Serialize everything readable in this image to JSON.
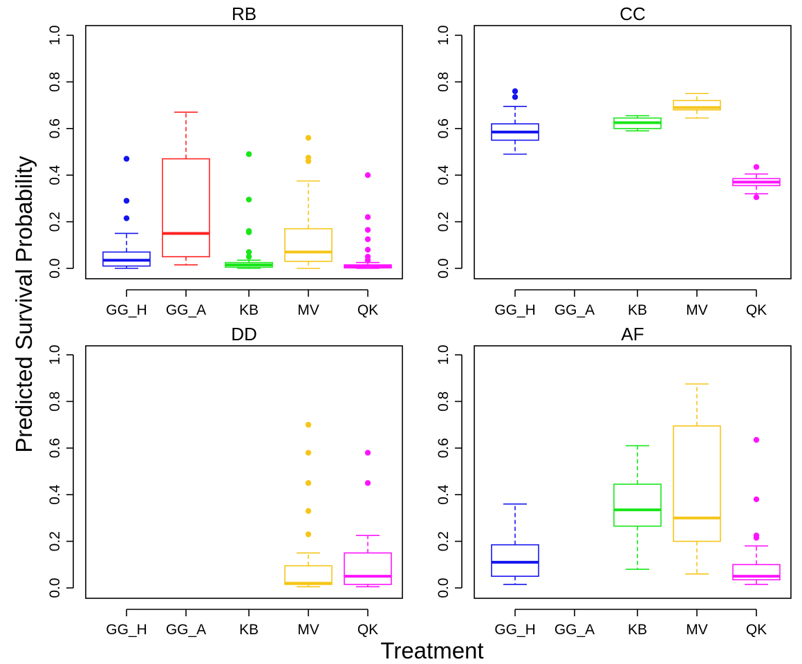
{
  "chart_data": {
    "type": "boxplot",
    "ylabel": "Predicted Survival Probability",
    "xlabel": "Treatment",
    "categories": [
      "GG_H",
      "GG_A",
      "KB",
      "MV",
      "QK"
    ],
    "y_ticks": [
      "0.0",
      "0.2",
      "0.4",
      "0.6",
      "0.8",
      "1.0"
    ],
    "ylim": [
      0,
      1.0
    ],
    "colors": {
      "GG_H": "#1414ee",
      "GG_A": "#ff2222",
      "KB": "#19e619",
      "MV": "#f5c518",
      "QK": "#ff14ff"
    },
    "panels": [
      {
        "title": "RB",
        "boxes": [
          {
            "category": "GG_H",
            "low": 0.0,
            "q1": 0.01,
            "median": 0.035,
            "q3": 0.07,
            "high": 0.15,
            "outliers": [
              0.215,
              0.29,
              0.47
            ]
          },
          {
            "category": "GG_A",
            "low": 0.015,
            "q1": 0.05,
            "median": 0.15,
            "q3": 0.47,
            "high": 0.67,
            "outliers": []
          },
          {
            "category": "KB",
            "low": 0.0,
            "q1": 0.005,
            "median": 0.015,
            "q3": 0.025,
            "high": 0.035,
            "outliers": [
              0.05,
              0.07,
              0.155,
              0.16,
              0.295,
              0.49
            ]
          },
          {
            "category": "MV",
            "low": 0.0,
            "q1": 0.03,
            "median": 0.07,
            "q3": 0.17,
            "high": 0.375,
            "outliers": [
              0.46,
              0.475,
              0.56
            ]
          },
          {
            "category": "QK",
            "low": 0.0,
            "q1": 0.002,
            "median": 0.008,
            "q3": 0.015,
            "high": 0.025,
            "outliers": [
              0.035,
              0.05,
              0.08,
              0.125,
              0.165,
              0.22,
              0.4
            ]
          }
        ]
      },
      {
        "title": "CC",
        "boxes": [
          {
            "category": "GG_H",
            "low": 0.49,
            "q1": 0.55,
            "median": 0.585,
            "q3": 0.62,
            "high": 0.695,
            "outliers": [
              0.735,
              0.76
            ]
          },
          {
            "category": "KB",
            "low": 0.59,
            "q1": 0.6,
            "median": 0.625,
            "q3": 0.645,
            "high": 0.655,
            "outliers": []
          },
          {
            "category": "MV",
            "low": 0.645,
            "q1": 0.68,
            "median": 0.69,
            "q3": 0.72,
            "high": 0.75,
            "outliers": []
          },
          {
            "category": "QK",
            "low": 0.32,
            "q1": 0.355,
            "median": 0.37,
            "q3": 0.385,
            "high": 0.405,
            "outliers": [
              0.305,
              0.435
            ]
          }
        ]
      },
      {
        "title": "DD",
        "boxes": [
          {
            "category": "MV",
            "low": 0.005,
            "q1": 0.015,
            "median": 0.02,
            "q3": 0.095,
            "high": 0.15,
            "outliers": [
              0.23,
              0.33,
              0.45,
              0.58,
              0.7
            ]
          },
          {
            "category": "QK",
            "low": 0.005,
            "q1": 0.015,
            "median": 0.05,
            "q3": 0.15,
            "high": 0.225,
            "outliers": [
              0.45,
              0.58
            ]
          }
        ]
      },
      {
        "title": "AF",
        "boxes": [
          {
            "category": "GG_H",
            "low": 0.015,
            "q1": 0.05,
            "median": 0.11,
            "q3": 0.185,
            "high": 0.36,
            "outliers": []
          },
          {
            "category": "KB",
            "low": 0.08,
            "q1": 0.265,
            "median": 0.335,
            "q3": 0.445,
            "high": 0.61,
            "outliers": []
          },
          {
            "category": "MV",
            "low": 0.06,
            "q1": 0.2,
            "median": 0.3,
            "q3": 0.695,
            "high": 0.875,
            "outliers": []
          },
          {
            "category": "QK",
            "low": 0.015,
            "q1": 0.035,
            "median": 0.05,
            "q3": 0.1,
            "high": 0.18,
            "outliers": [
              0.215,
              0.225,
              0.38,
              0.635
            ]
          }
        ]
      }
    ]
  }
}
